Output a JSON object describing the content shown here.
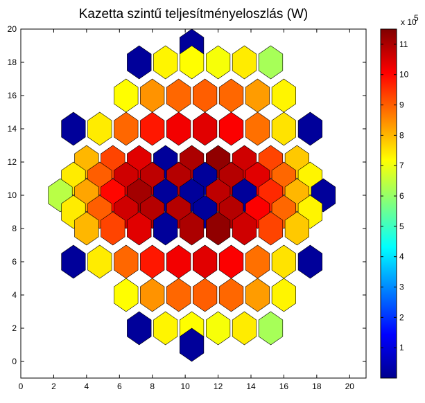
{
  "chart_data": {
    "type": "heatmap",
    "subtype": "hexagonal-map",
    "title": "Kazetta szintű teljesítményeloszlás (W)",
    "xlim": [
      0,
      21
    ],
    "ylim": [
      -1,
      20
    ],
    "xticks": [
      0,
      2,
      4,
      6,
      8,
      10,
      12,
      14,
      16,
      18,
      20
    ],
    "yticks": [
      0,
      2,
      4,
      6,
      8,
      10,
      12,
      14,
      16,
      18,
      20
    ],
    "colorbar": {
      "label_multiplier": "x 10",
      "label_exponent": "5",
      "range": [
        0,
        11.5
      ],
      "ticks": [
        1,
        2,
        3,
        4,
        5,
        6,
        7,
        8,
        9,
        10,
        11
      ],
      "colormap": "jet"
    },
    "colors": {
      "grid_line": "#000000",
      "background": "#ffffff"
    },
    "cells_x10e5_W": [
      {
        "x": 10.4,
        "y": 19,
        "v": 0.3
      },
      {
        "x": 7.2,
        "y": 18,
        "v": 0.3
      },
      {
        "x": 8.8,
        "y": 18,
        "v": 7.3
      },
      {
        "x": 10.4,
        "y": 18,
        "v": 7.2
      },
      {
        "x": 12,
        "y": 18,
        "v": 7.1
      },
      {
        "x": 13.6,
        "y": 18,
        "v": 7.4
      },
      {
        "x": 15.2,
        "y": 18,
        "v": 6.2
      },
      {
        "x": 6.4,
        "y": 16,
        "v": 7.2
      },
      {
        "x": 8,
        "y": 16,
        "v": 8.4
      },
      {
        "x": 9.6,
        "y": 16,
        "v": 8.9
      },
      {
        "x": 11.2,
        "y": 16,
        "v": 9.0
      },
      {
        "x": 12.8,
        "y": 16,
        "v": 8.9
      },
      {
        "x": 14.4,
        "y": 16,
        "v": 8.3
      },
      {
        "x": 16,
        "y": 16,
        "v": 7.3
      },
      {
        "x": 3.2,
        "y": 14,
        "v": 0.3
      },
      {
        "x": 4.8,
        "y": 14,
        "v": 7.4
      },
      {
        "x": 6.4,
        "y": 14,
        "v": 8.9
      },
      {
        "x": 8,
        "y": 14,
        "v": 9.8
      },
      {
        "x": 9.6,
        "y": 14,
        "v": 10.2
      },
      {
        "x": 11.2,
        "y": 14,
        "v": 10.4
      },
      {
        "x": 12.8,
        "y": 14,
        "v": 10.1
      },
      {
        "x": 14.4,
        "y": 14,
        "v": 8.8
      },
      {
        "x": 16,
        "y": 14,
        "v": 7.5
      },
      {
        "x": 17.6,
        "y": 14,
        "v": 0.3
      },
      {
        "x": 4,
        "y": 12,
        "v": 8.0
      },
      {
        "x": 5.6,
        "y": 12,
        "v": 9.3
      },
      {
        "x": 7.2,
        "y": 12,
        "v": 10.4
      },
      {
        "x": 8.8,
        "y": 12,
        "v": 0.3
      },
      {
        "x": 10.4,
        "y": 12,
        "v": 11.0
      },
      {
        "x": 12,
        "y": 12,
        "v": 11.3
      },
      {
        "x": 13.6,
        "y": 12,
        "v": 10.6
      },
      {
        "x": 15.2,
        "y": 12,
        "v": 9.3
      },
      {
        "x": 16.8,
        "y": 12,
        "v": 7.8
      },
      {
        "x": 3.2,
        "y": 11,
        "v": 7.4
      },
      {
        "x": 4.8,
        "y": 11,
        "v": 9.0
      },
      {
        "x": 6.4,
        "y": 11,
        "v": 10.6
      },
      {
        "x": 8,
        "y": 11,
        "v": 10.8
      },
      {
        "x": 9.6,
        "y": 11,
        "v": 10.9
      },
      {
        "x": 11.2,
        "y": 11,
        "v": 0.3
      },
      {
        "x": 12.8,
        "y": 11,
        "v": 10.9
      },
      {
        "x": 14.4,
        "y": 11,
        "v": 10.4
      },
      {
        "x": 16,
        "y": 11,
        "v": 8.9
      },
      {
        "x": 17.6,
        "y": 11,
        "v": 7.3
      },
      {
        "x": 2.4,
        "y": 10,
        "v": 6.4
      },
      {
        "x": 4,
        "y": 10,
        "v": 8.2
      },
      {
        "x": 5.6,
        "y": 10,
        "v": 10.0
      },
      {
        "x": 7.2,
        "y": 10,
        "v": 11.1
      },
      {
        "x": 8.8,
        "y": 10,
        "v": 0.3
      },
      {
        "x": 10.4,
        "y": 10,
        "v": 0.3
      },
      {
        "x": 12,
        "y": 10,
        "v": 10.8
      },
      {
        "x": 13.6,
        "y": 10,
        "v": 0.3
      },
      {
        "x": 15.2,
        "y": 10,
        "v": 9.6
      },
      {
        "x": 16.8,
        "y": 10,
        "v": 8.0
      },
      {
        "x": 18.4,
        "y": 10,
        "v": 0.3
      },
      {
        "x": 3.2,
        "y": 9,
        "v": 7.4
      },
      {
        "x": 4.8,
        "y": 9,
        "v": 9.0
      },
      {
        "x": 6.4,
        "y": 9,
        "v": 10.6
      },
      {
        "x": 8,
        "y": 9,
        "v": 10.9
      },
      {
        "x": 9.6,
        "y": 9,
        "v": 10.9
      },
      {
        "x": 11.2,
        "y": 9,
        "v": 0.3
      },
      {
        "x": 12.8,
        "y": 9,
        "v": 10.9
      },
      {
        "x": 14.4,
        "y": 9,
        "v": 10.1
      },
      {
        "x": 16,
        "y": 9,
        "v": 8.9
      },
      {
        "x": 17.6,
        "y": 9,
        "v": 7.3
      },
      {
        "x": 4,
        "y": 8,
        "v": 8.0
      },
      {
        "x": 5.6,
        "y": 8,
        "v": 9.3
      },
      {
        "x": 7.2,
        "y": 8,
        "v": 10.4
      },
      {
        "x": 8.8,
        "y": 8,
        "v": 0.3
      },
      {
        "x": 10.4,
        "y": 8,
        "v": 11.0
      },
      {
        "x": 12,
        "y": 8,
        "v": 11.3
      },
      {
        "x": 13.6,
        "y": 8,
        "v": 10.6
      },
      {
        "x": 15.2,
        "y": 8,
        "v": 9.3
      },
      {
        "x": 16.8,
        "y": 8,
        "v": 7.8
      },
      {
        "x": 3.2,
        "y": 6,
        "v": 0.3
      },
      {
        "x": 4.8,
        "y": 6,
        "v": 7.4
      },
      {
        "x": 6.4,
        "y": 6,
        "v": 8.9
      },
      {
        "x": 8,
        "y": 6,
        "v": 9.8
      },
      {
        "x": 9.6,
        "y": 6,
        "v": 10.2
      },
      {
        "x": 11.2,
        "y": 6,
        "v": 10.4
      },
      {
        "x": 12.8,
        "y": 6,
        "v": 10.1
      },
      {
        "x": 14.4,
        "y": 6,
        "v": 8.8
      },
      {
        "x": 16,
        "y": 6,
        "v": 7.5
      },
      {
        "x": 17.6,
        "y": 6,
        "v": 0.3
      },
      {
        "x": 6.4,
        "y": 4,
        "v": 7.2
      },
      {
        "x": 8,
        "y": 4,
        "v": 8.4
      },
      {
        "x": 9.6,
        "y": 4,
        "v": 8.9
      },
      {
        "x": 11.2,
        "y": 4,
        "v": 9.0
      },
      {
        "x": 12.8,
        "y": 4,
        "v": 8.9
      },
      {
        "x": 14.4,
        "y": 4,
        "v": 8.3
      },
      {
        "x": 16,
        "y": 4,
        "v": 7.3
      },
      {
        "x": 7.2,
        "y": 2,
        "v": 0.3
      },
      {
        "x": 8.8,
        "y": 2,
        "v": 7.3
      },
      {
        "x": 10.4,
        "y": 2,
        "v": 7.2
      },
      {
        "x": 12,
        "y": 2,
        "v": 7.1
      },
      {
        "x": 13.6,
        "y": 2,
        "v": 7.4
      },
      {
        "x": 15.2,
        "y": 2,
        "v": 6.2
      },
      {
        "x": 10.4,
        "y": 1,
        "v": 0.3
      }
    ]
  }
}
